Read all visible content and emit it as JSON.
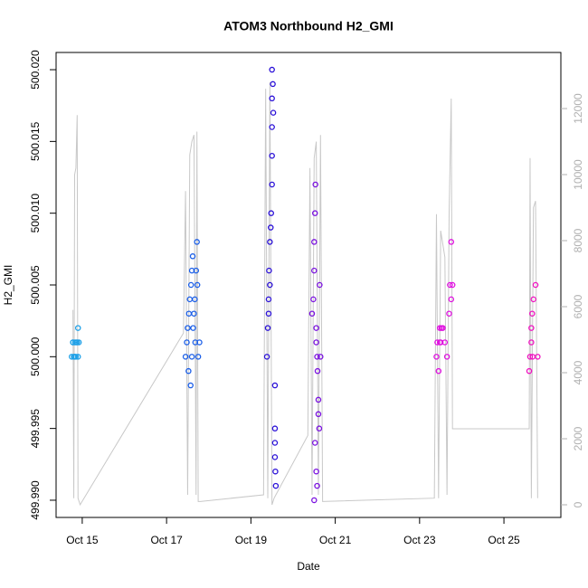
{
  "chart_data": {
    "type": "scatter",
    "title": "ATOM3 Northbound H2_GMI",
    "x_label": "Date",
    "y_label": "H2_GMI",
    "xlim": [
      14.38,
      26.35
    ],
    "xticks": [
      {
        "value": 15,
        "label": "Oct 15"
      },
      {
        "value": 17,
        "label": "Oct 17"
      },
      {
        "value": 19,
        "label": "Oct 19"
      },
      {
        "value": 21,
        "label": "Oct 21"
      },
      {
        "value": 23,
        "label": "Oct 23"
      },
      {
        "value": 25,
        "label": "Oct 25"
      }
    ],
    "ylim": [
      499.9888,
      500.0212
    ],
    "yticks": [
      {
        "value": 499.99,
        "label": "499.990"
      },
      {
        "value": 499.995,
        "label": "499.995"
      },
      {
        "value": 500,
        "label": "500.000"
      },
      {
        "value": 500.005,
        "label": "500.005"
      },
      {
        "value": 500.01,
        "label": "500.010"
      },
      {
        "value": 500.015,
        "label": "500.015"
      },
      {
        "value": 500.02,
        "label": "500.020"
      }
    ],
    "y2lim": [
      -384,
      13699
    ],
    "y2ticks": [
      0,
      2000,
      4000,
      6000,
      8000,
      10000,
      12000
    ],
    "y2_color": "#b0b0b0",
    "series": [
      {
        "mode": "line",
        "axis": "y2",
        "color": "#c8c8c8",
        "x": [
          14.78,
          14.8,
          14.82,
          14.85,
          14.88,
          14.9,
          14.95,
          17.4,
          17.45,
          17.5,
          17.55,
          17.6,
          17.65,
          17.7,
          17.72,
          17.75,
          17.8,
          19.3,
          19.35,
          19.4,
          19.45,
          19.5,
          19.55,
          20.35,
          20.4,
          20.45,
          20.5,
          20.55,
          20.6,
          20.65,
          20.7,
          23.35,
          23.4,
          23.45,
          23.5,
          23.6,
          23.65,
          23.7,
          23.75,
          23.78,
          25.6,
          25.62,
          25.65,
          25.7,
          25.75,
          25.8
        ],
        "values": [
          5900,
          200,
          10000,
          10200,
          11800,
          200,
          0,
          5200,
          9500,
          300,
          10600,
          11000,
          11200,
          300,
          11300,
          100,
          100,
          300,
          12600,
          200,
          12800,
          0,
          200,
          2100,
          10200,
          300,
          10500,
          11000,
          300,
          11200,
          100,
          200,
          8800,
          200,
          8300,
          7500,
          300,
          8800,
          12300,
          2300,
          2300,
          10500,
          200,
          9000,
          9200,
          200
        ]
      },
      {
        "mode": "points",
        "color": "#1ca0e8",
        "x": [
          14.75,
          14.78,
          14.8,
          14.83,
          14.85,
          14.88,
          14.9,
          14.78,
          14.82,
          14.86,
          14.9,
          14.92
        ],
        "values": [
          500.0,
          500.001,
          500.0,
          500.001,
          500.0,
          500.001,
          500.0,
          500.001,
          500.0,
          500.001,
          500.002,
          500.001
        ]
      },
      {
        "mode": "points",
        "color": "#1a5ee8",
        "x": [
          17.45,
          17.48,
          17.5,
          17.52,
          17.53,
          17.55,
          17.57,
          17.58,
          17.6,
          17.62,
          17.63,
          17.65,
          17.67,
          17.68,
          17.7,
          17.72,
          17.73,
          17.75,
          17.78,
          17.6
        ],
        "values": [
          500.0,
          500.001,
          500.002,
          499.999,
          500.003,
          500.004,
          499.998,
          500.005,
          500.006,
          500.007,
          500.002,
          500.003,
          500.004,
          500.001,
          500.006,
          500.008,
          500.005,
          500.0,
          500.001,
          500.0
        ]
      },
      {
        "mode": "points",
        "color": "#2a10d8",
        "x": [
          19.38,
          19.4,
          19.42,
          19.43,
          19.45,
          19.47,
          19.48,
          19.5,
          19.5,
          19.5,
          19.5,
          19.5,
          19.52,
          19.53,
          19.57,
          19.57,
          19.57,
          19.57,
          19.58,
          19.59,
          19.42,
          19.45
        ],
        "values": [
          500.0,
          500.002,
          500.004,
          500.006,
          500.008,
          500.009,
          500.01,
          500.012,
          500.014,
          500.016,
          500.018,
          500.02,
          500.019,
          500.017,
          499.998,
          499.995,
          499.994,
          499.993,
          499.992,
          499.991,
          500.003,
          500.005
        ]
      },
      {
        "mode": "points",
        "color": "#7a10e0",
        "x": [
          20.45,
          20.48,
          20.5,
          20.5,
          20.52,
          20.53,
          20.55,
          20.55,
          20.57,
          20.58,
          20.6,
          20.6,
          20.62,
          20.63,
          20.65,
          20.52,
          20.55,
          20.57,
          20.5
        ],
        "values": [
          500.003,
          500.004,
          500.006,
          500.008,
          500.01,
          500.012,
          500.002,
          500.001,
          500.0,
          499.999,
          499.997,
          499.996,
          499.995,
          500.005,
          500.0,
          499.994,
          499.992,
          499.991,
          499.99
        ]
      },
      {
        "mode": "points",
        "color": "#e010e0",
        "x": [
          23.4,
          23.42,
          23.45,
          23.48,
          23.5,
          23.55,
          23.6,
          23.65,
          23.7,
          23.72,
          23.75,
          23.78,
          23.48,
          23.52,
          23.75
        ],
        "values": [
          500.0,
          500.001,
          499.999,
          500.002,
          500.001,
          500.002,
          500.001,
          500.0,
          500.003,
          500.005,
          500.008,
          500.005,
          500.001,
          500.002,
          500.004
        ]
      },
      {
        "mode": "points",
        "color": "#f010c0",
        "x": [
          25.6,
          25.62,
          25.65,
          25.67,
          25.7,
          25.75,
          25.8,
          25.65,
          25.68
        ],
        "values": [
          499.999,
          500.0,
          500.002,
          500.003,
          500.004,
          500.005,
          500.0,
          500.001,
          500.0
        ]
      }
    ]
  }
}
